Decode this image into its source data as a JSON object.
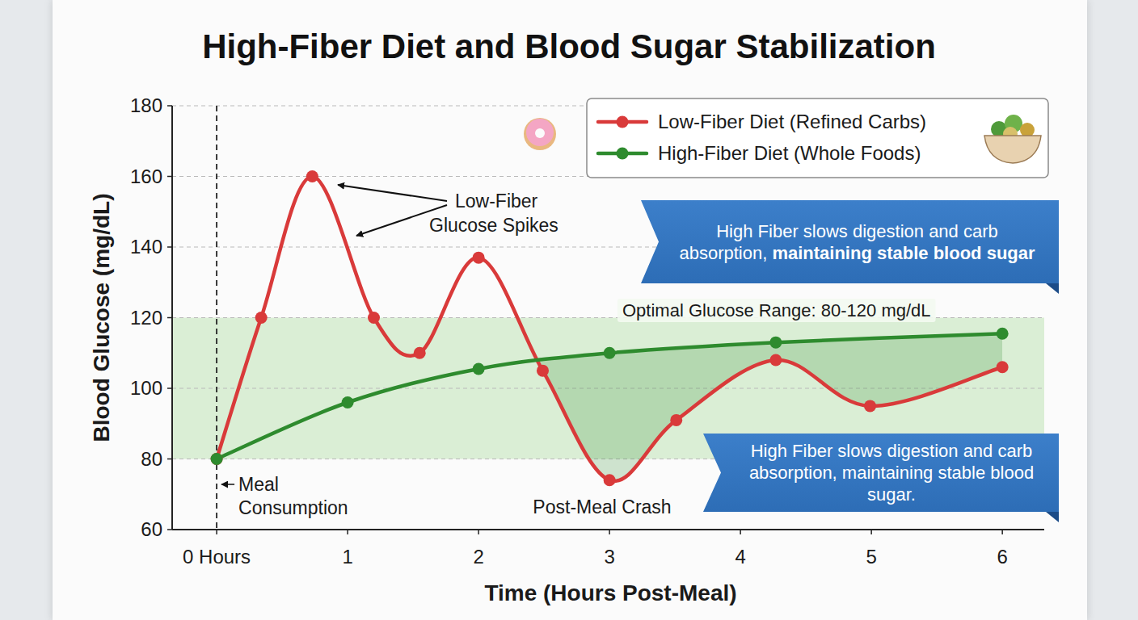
{
  "chart_data": {
    "type": "line",
    "title": "High-Fiber Diet and Blood Sugar Stabilization",
    "x_label": "Time (Hours Post-Meal)",
    "y_label": "Blood Glucose (mg/dL)",
    "xlim": [
      -0.34,
      6.32
    ],
    "xticks": [
      {
        "value": 0,
        "label": "0 Hours"
      },
      1,
      2,
      3,
      4,
      5,
      6
    ],
    "ylim": [
      60,
      180
    ],
    "yticks": [
      60,
      80,
      100,
      120,
      140,
      160,
      180
    ],
    "grid": true,
    "legend": "upper right",
    "series": [
      {
        "name": "Low-Fiber Diet (Refined Carbs)",
        "color": "#d93a3a",
        "marker": "circle",
        "line_style": "solid",
        "x": [
          0,
          0.34,
          0.73,
          1.2,
          1.55,
          2,
          2.49,
          3,
          3.51,
          4.27,
          4.99,
          6
        ],
        "values": [
          80,
          120,
          160,
          120,
          110,
          137,
          105,
          74,
          91,
          108,
          95,
          106
        ]
      },
      {
        "name": "High-Fiber Diet (Whole Foods)",
        "color": "#2e8b2e",
        "marker": "circle",
        "line_style": "solid",
        "x": [
          0,
          1,
          2,
          3,
          4.27,
          6
        ],
        "values": [
          80,
          96,
          105.5,
          110,
          113,
          115.5
        ]
      }
    ],
    "annotations": [
      {
        "type": "band",
        "y": [
          80,
          120
        ],
        "text": "Optimal Glucose Range: 80-120 mg/dL",
        "color": "#cfeac8"
      },
      {
        "type": "vline",
        "x": 0,
        "text": [
          "Meal",
          "Consumption"
        ]
      },
      {
        "type": "arrow_label",
        "text": [
          "Low-Fiber",
          "Glucose Spikes"
        ]
      },
      {
        "type": "label",
        "text": "Post-Meal Crash"
      },
      {
        "type": "callout",
        "text": [
          "High Fiber slows digestion and carb absorption, ",
          "maintaining stable blood sugar"
        ],
        "color": "#2d6db6"
      },
      {
        "type": "callout",
        "text": [
          "High Fiber slows digestion and carb absorption, maintaining stable blood sugar."
        ],
        "color": "#2d6db6"
      }
    ]
  }
}
